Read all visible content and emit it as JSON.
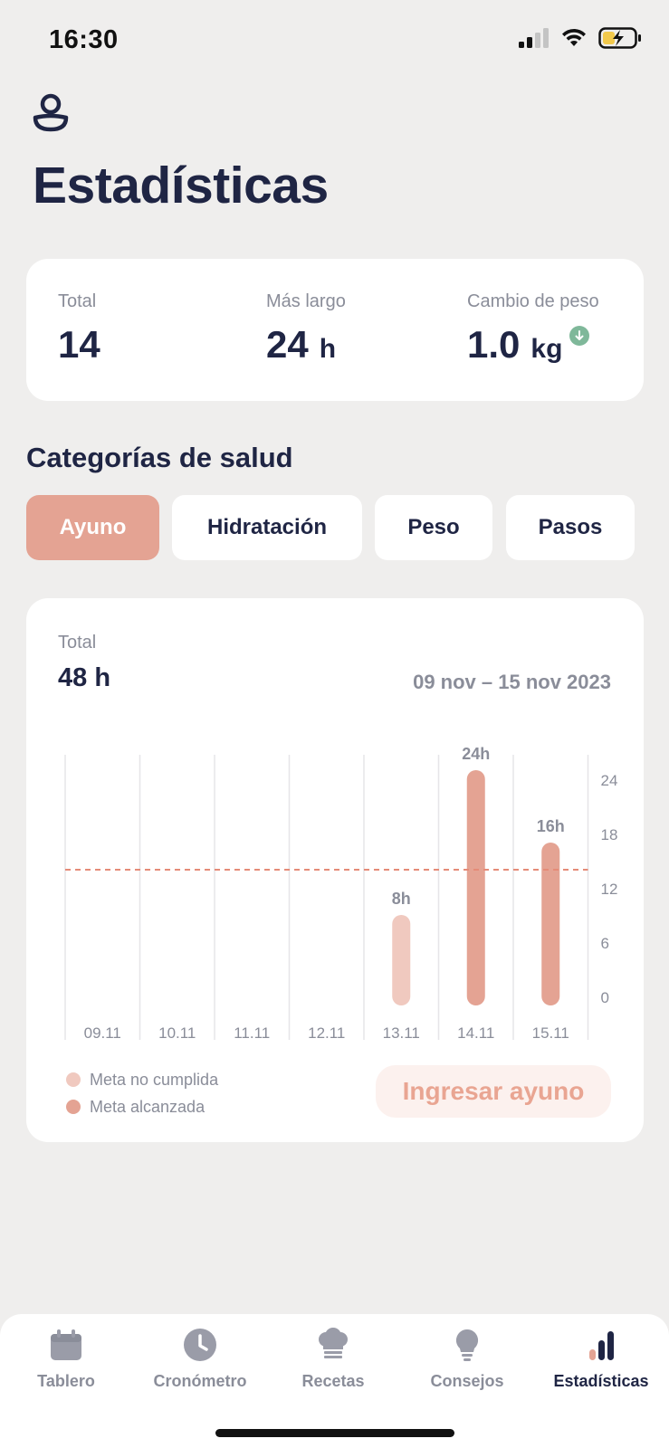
{
  "status_bar": {
    "time": "16:30"
  },
  "page": {
    "title": "Estadísticas"
  },
  "summary": {
    "total_label": "Total",
    "total_value": "14",
    "longest_label": "Más largo",
    "longest_value": "24",
    "longest_unit": "h",
    "weight_label": "Cambio de peso",
    "weight_value": "1.0",
    "weight_unit": "kg"
  },
  "categories": {
    "title": "Categorías de salud",
    "tabs": [
      {
        "label": "Ayuno",
        "active": true
      },
      {
        "label": "Hidratación",
        "active": false
      },
      {
        "label": "Peso",
        "active": false
      },
      {
        "label": "Pasos",
        "active": false
      }
    ]
  },
  "chart_card": {
    "total_label": "Total",
    "total_value": "48 h",
    "date_range": "09 nov – 15 nov 2023",
    "cta_label": "Ingresar ayuno"
  },
  "colors": {
    "accent": "#e4a393",
    "goal_not_met": "#f0c9bf",
    "goal_met": "#e4a393",
    "goal_line": "#e58b78",
    "navy": "#1f2544",
    "muted": "#8a8d99"
  },
  "chart_data": {
    "type": "bar",
    "categories": [
      "09.11",
      "10.11",
      "11.11",
      "12.11",
      "13.11",
      "14.11",
      "15.11"
    ],
    "values": [
      0,
      0,
      0,
      0,
      8,
      24,
      16
    ],
    "data_labels": [
      "",
      "",
      "",
      "",
      "8h",
      "24h",
      "16h"
    ],
    "goal_met": [
      false,
      false,
      false,
      false,
      false,
      true,
      true
    ],
    "goal_line": 14,
    "y_ticks": [
      "0",
      "6",
      "12",
      "18",
      "24"
    ],
    "ylim": [
      0,
      24
    ],
    "y_axis_position": "right",
    "legend": [
      {
        "label": "Meta no cumplida",
        "color": "#f0c9bf"
      },
      {
        "label": "Meta alcanzada",
        "color": "#e4a393"
      }
    ],
    "legend_position": "bottom-left"
  },
  "bottom_nav": {
    "items": [
      {
        "label": "Tablero",
        "icon": "calendar-icon",
        "active": false
      },
      {
        "label": "Cronómetro",
        "icon": "clock-icon",
        "active": false
      },
      {
        "label": "Recetas",
        "icon": "chef-hat-icon",
        "active": false
      },
      {
        "label": "Consejos",
        "icon": "lightbulb-icon",
        "active": false
      },
      {
        "label": "Estadísticas",
        "icon": "bar-chart-icon",
        "active": true
      }
    ]
  }
}
